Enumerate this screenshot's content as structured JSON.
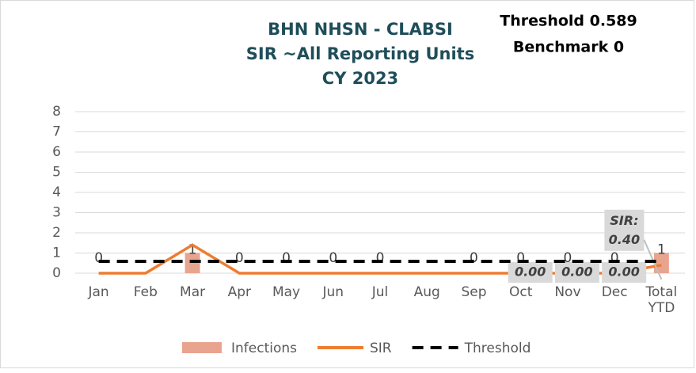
{
  "chart_data": {
    "type": "combo",
    "title": [
      "BHN NHSN - CLABSI",
      "SIR ~All Reporting Units",
      "CY 2023"
    ],
    "annotations": [
      "Threshold 0.589",
      "Benchmark 0"
    ],
    "categories": [
      "Jan",
      "Feb",
      "Mar",
      "Apr",
      "May",
      "Jun",
      "Jul",
      "Aug",
      "Sep",
      "Oct",
      "Nov",
      "Dec",
      "Total YTD"
    ],
    "series": [
      {
        "name": "Infections",
        "kind": "bar",
        "color": "#e9a48f",
        "values": [
          0,
          null,
          1,
          0,
          0,
          0,
          0,
          null,
          0,
          0,
          0,
          0,
          1
        ]
      },
      {
        "name": "SIR",
        "kind": "line",
        "color": "#ed7d31",
        "values": [
          0,
          0,
          1.4,
          0,
          0,
          0,
          0,
          0,
          0,
          0,
          0,
          0,
          0.4
        ],
        "value_labels": [
          null,
          null,
          null,
          null,
          null,
          null,
          null,
          null,
          null,
          "0.00",
          "0.00",
          "0.00",
          "SIR: 0.40"
        ]
      },
      {
        "name": "Threshold",
        "kind": "dashed",
        "color": "#000000",
        "values": [
          0.589,
          0.589,
          0.589,
          0.589,
          0.589,
          0.589,
          0.589,
          0.589,
          0.589,
          0.589,
          0.589,
          0.589,
          0.589
        ]
      }
    ],
    "ylim": [
      0,
      8
    ],
    "yticks": [
      0,
      1,
      2,
      3,
      4,
      5,
      6,
      7,
      8
    ],
    "grid": true
  }
}
